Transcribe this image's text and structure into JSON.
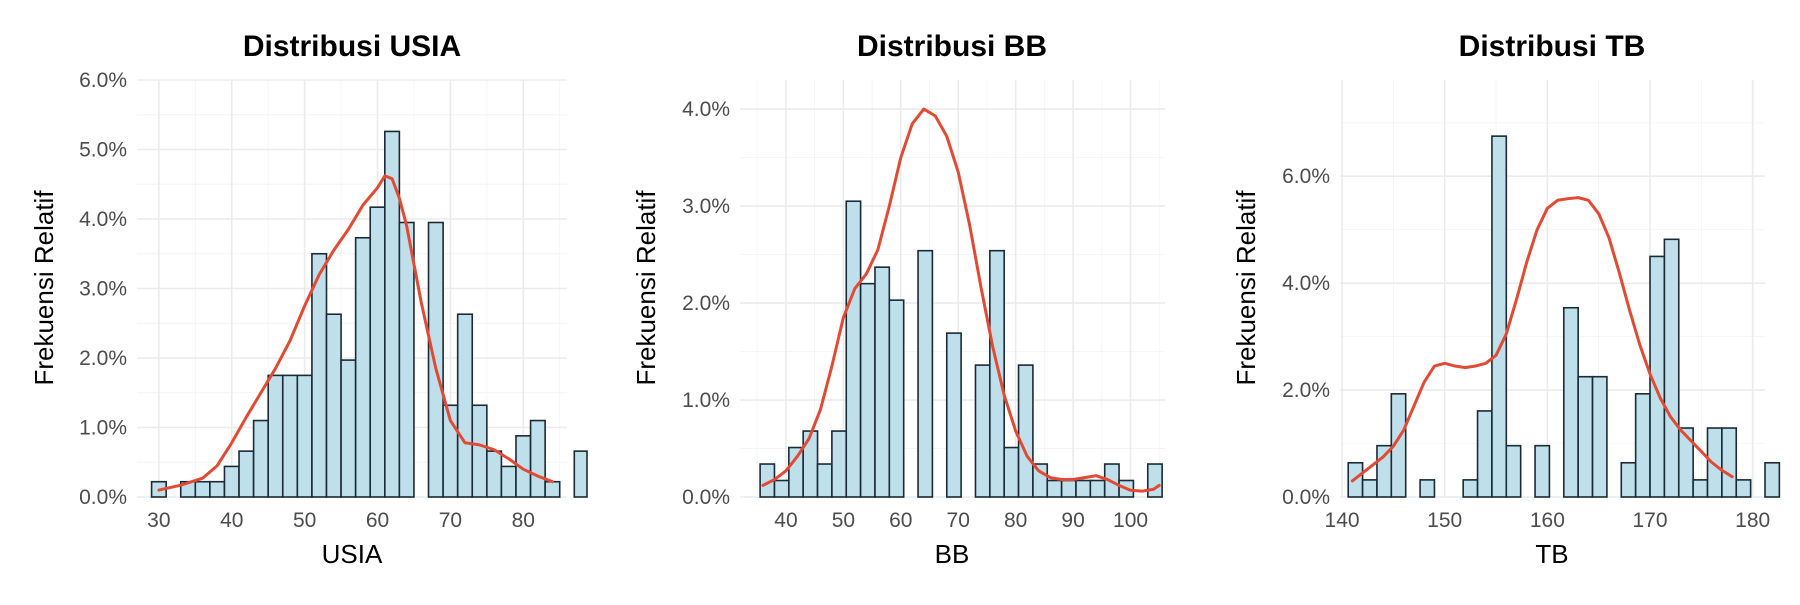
{
  "colors": {
    "bar_fill": "#bfe0eb",
    "bar_stroke": "#1a2a36",
    "density_line": "#e34a33",
    "grid": "#ebebeb"
  },
  "chart_data": [
    {
      "type": "bar",
      "title": "Distribusi USIA",
      "xlabel": "USIA",
      "ylabel": "Frekuensi Relatif",
      "xlim": [
        27,
        86
      ],
      "ylim": [
        0,
        6
      ],
      "x_ticks": [
        "30",
        "40",
        "50",
        "60",
        "70",
        "80"
      ],
      "y_ticks": [
        "0.0%",
        "1.0%",
        "2.0%",
        "3.0%",
        "4.0%",
        "5.0%",
        "6.0%"
      ],
      "y_unit": "percent",
      "grid": true,
      "bins": [
        {
          "from": 29.0,
          "to": 31.0,
          "value": 0.22
        },
        {
          "from": 31.0,
          "to": 33.0,
          "value": 0.0
        },
        {
          "from": 33.0,
          "to": 35.0,
          "value": 0.22
        },
        {
          "from": 35.0,
          "to": 37.0,
          "value": 0.22
        },
        {
          "from": 37.0,
          "to": 39.0,
          "value": 0.22
        },
        {
          "from": 39.0,
          "to": 41.0,
          "value": 0.44
        },
        {
          "from": 41.0,
          "to": 43.0,
          "value": 0.66
        },
        {
          "from": 43.0,
          "to": 45.0,
          "value": 1.1
        },
        {
          "from": 45.0,
          "to": 47.0,
          "value": 1.75
        },
        {
          "from": 47.0,
          "to": 49.0,
          "value": 1.75
        },
        {
          "from": 49.0,
          "to": 51.0,
          "value": 1.75
        },
        {
          "from": 51.0,
          "to": 53.0,
          "value": 3.5
        },
        {
          "from": 53.0,
          "to": 55.0,
          "value": 2.63
        },
        {
          "from": 55.0,
          "to": 57.0,
          "value": 1.97
        },
        {
          "from": 57.0,
          "to": 59.0,
          "value": 3.73
        },
        {
          "from": 59.0,
          "to": 61.0,
          "value": 4.17
        },
        {
          "from": 61.0,
          "to": 63.0,
          "value": 5.26
        },
        {
          "from": 63.0,
          "to": 65.0,
          "value": 3.95
        },
        {
          "from": 65.0,
          "to": 67.0,
          "value": 0.0
        },
        {
          "from": 67.0,
          "to": 69.0,
          "value": 3.95
        },
        {
          "from": 69.0,
          "to": 71.0,
          "value": 1.32
        },
        {
          "from": 71.0,
          "to": 73.0,
          "value": 2.63
        },
        {
          "from": 73.0,
          "to": 75.0,
          "value": 1.32
        },
        {
          "from": 75.0,
          "to": 77.0,
          "value": 0.66
        },
        {
          "from": 77.0,
          "to": 79.0,
          "value": 0.44
        },
        {
          "from": 79.0,
          "to": 81.0,
          "value": 0.88
        },
        {
          "from": 81.0,
          "to": 83.0,
          "value": 1.1
        },
        {
          "from": 83.0,
          "to": 85.0,
          "value": 0.22
        },
        {
          "from": 85.0,
          "to": 87.0,
          "value": 0.0
        },
        {
          "from": 87.0,
          "to": 89.0,
          "value": 0.66
        }
      ],
      "density": {
        "x": [
          30,
          33,
          36,
          38,
          40,
          42,
          44,
          46,
          48,
          50,
          52,
          54,
          56,
          58,
          60,
          61,
          62,
          63,
          64,
          65,
          66,
          68,
          70,
          72,
          74,
          76,
          78,
          80,
          82,
          84
        ],
        "y": [
          0.1,
          0.17,
          0.27,
          0.45,
          0.78,
          1.15,
          1.5,
          1.85,
          2.25,
          2.75,
          3.2,
          3.55,
          3.85,
          4.2,
          4.45,
          4.62,
          4.58,
          4.3,
          3.9,
          3.35,
          2.8,
          1.85,
          1.1,
          0.78,
          0.75,
          0.68,
          0.55,
          0.4,
          0.3,
          0.22
        ]
      }
    },
    {
      "type": "bar",
      "title": "Distribusi BB",
      "xlabel": "BB",
      "ylabel": "Frekuensi Relatif",
      "xlim": [
        32,
        106
      ],
      "ylim": [
        0,
        4.3
      ],
      "x_ticks": [
        "40",
        "50",
        "60",
        "70",
        "80",
        "90",
        "100"
      ],
      "y_ticks": [
        "0.0%",
        "1.0%",
        "2.0%",
        "3.0%",
        "4.0%"
      ],
      "y_unit": "percent",
      "grid": true,
      "bins": [
        {
          "from": 35.5,
          "to": 38.0,
          "value": 0.34
        },
        {
          "from": 38.0,
          "to": 40.5,
          "value": 0.17
        },
        {
          "from": 40.5,
          "to": 43.0,
          "value": 0.51
        },
        {
          "from": 43.0,
          "to": 45.5,
          "value": 0.68
        },
        {
          "from": 45.5,
          "to": 48.0,
          "value": 0.34
        },
        {
          "from": 48.0,
          "to": 50.5,
          "value": 0.68
        },
        {
          "from": 50.5,
          "to": 53.0,
          "value": 3.05
        },
        {
          "from": 53.0,
          "to": 55.5,
          "value": 2.2
        },
        {
          "from": 55.5,
          "to": 58.0,
          "value": 2.37
        },
        {
          "from": 58.0,
          "to": 60.5,
          "value": 2.03
        },
        {
          "from": 60.5,
          "to": 63.0,
          "value": 0.0
        },
        {
          "from": 63.0,
          "to": 65.5,
          "value": 2.54
        },
        {
          "from": 65.5,
          "to": 68.0,
          "value": 0.0
        },
        {
          "from": 68.0,
          "to": 70.5,
          "value": 1.69
        },
        {
          "from": 70.5,
          "to": 73.0,
          "value": 0.0
        },
        {
          "from": 73.0,
          "to": 75.5,
          "value": 1.36
        },
        {
          "from": 75.5,
          "to": 78.0,
          "value": 2.54
        },
        {
          "from": 78.0,
          "to": 80.5,
          "value": 0.51
        },
        {
          "from": 80.5,
          "to": 83.0,
          "value": 1.36
        },
        {
          "from": 83.0,
          "to": 85.5,
          "value": 0.34
        },
        {
          "from": 85.5,
          "to": 88.0,
          "value": 0.17
        },
        {
          "from": 88.0,
          "to": 90.5,
          "value": 0.17
        },
        {
          "from": 90.5,
          "to": 93.0,
          "value": 0.17
        },
        {
          "from": 93.0,
          "to": 95.5,
          "value": 0.17
        },
        {
          "from": 95.5,
          "to": 98.0,
          "value": 0.34
        },
        {
          "from": 98.0,
          "to": 100.5,
          "value": 0.17
        },
        {
          "from": 100.5,
          "to": 103.0,
          "value": 0.0
        },
        {
          "from": 103.0,
          "to": 105.5,
          "value": 0.34
        }
      ],
      "density": {
        "x": [
          36,
          38,
          40,
          42,
          44,
          46,
          48,
          50,
          52,
          54,
          56,
          58,
          60,
          62,
          64,
          66,
          68,
          70,
          72,
          74,
          76,
          78,
          80,
          82,
          84,
          86,
          88,
          90,
          92,
          94,
          96,
          98,
          100,
          102,
          104,
          105
        ],
        "y": [
          0.12,
          0.18,
          0.27,
          0.42,
          0.6,
          0.9,
          1.35,
          1.85,
          2.15,
          2.3,
          2.55,
          3.0,
          3.5,
          3.85,
          4.0,
          3.93,
          3.72,
          3.35,
          2.8,
          2.15,
          1.55,
          1.05,
          0.68,
          0.42,
          0.27,
          0.2,
          0.18,
          0.18,
          0.2,
          0.22,
          0.18,
          0.12,
          0.07,
          0.06,
          0.08,
          0.12
        ]
      }
    },
    {
      "type": "bar",
      "title": "Distribusi TB",
      "xlabel": "TB",
      "ylabel": "Frekuensi Relatif",
      "xlim": [
        139.8,
        181.2
      ],
      "ylim": [
        0,
        7.8
      ],
      "x_ticks": [
        "140",
        "150",
        "160",
        "170",
        "180"
      ],
      "y_ticks": [
        "0.0%",
        "2.0%",
        "4.0%",
        "6.0%"
      ],
      "y_unit": "percent",
      "grid": true,
      "bins": [
        {
          "from": 140.6,
          "to": 142.0,
          "value": 0.64
        },
        {
          "from": 142.0,
          "to": 143.4,
          "value": 0.32
        },
        {
          "from": 143.4,
          "to": 144.8,
          "value": 0.96
        },
        {
          "from": 144.8,
          "to": 146.2,
          "value": 1.93
        },
        {
          "from": 146.2,
          "to": 147.6,
          "value": 0.0
        },
        {
          "from": 147.6,
          "to": 149.0,
          "value": 0.32
        },
        {
          "from": 149.0,
          "to": 150.4,
          "value": 0.0
        },
        {
          "from": 150.4,
          "to": 151.8,
          "value": 0.0
        },
        {
          "from": 151.8,
          "to": 153.2,
          "value": 0.32
        },
        {
          "from": 153.2,
          "to": 154.6,
          "value": 1.61
        },
        {
          "from": 154.6,
          "to": 156.0,
          "value": 6.75
        },
        {
          "from": 156.0,
          "to": 157.4,
          "value": 0.96
        },
        {
          "from": 157.4,
          "to": 158.8,
          "value": 0.0
        },
        {
          "from": 158.8,
          "to": 160.2,
          "value": 0.96
        },
        {
          "from": 160.2,
          "to": 161.6,
          "value": 0.0
        },
        {
          "from": 161.6,
          "to": 163.0,
          "value": 3.54
        },
        {
          "from": 163.0,
          "to": 164.4,
          "value": 2.25
        },
        {
          "from": 164.4,
          "to": 165.8,
          "value": 2.25
        },
        {
          "from": 165.8,
          "to": 167.2,
          "value": 0.0
        },
        {
          "from": 167.2,
          "to": 168.6,
          "value": 0.64
        },
        {
          "from": 168.6,
          "to": 170.0,
          "value": 1.93
        },
        {
          "from": 170.0,
          "to": 171.4,
          "value": 4.5
        },
        {
          "from": 171.4,
          "to": 172.8,
          "value": 4.82
        },
        {
          "from": 172.8,
          "to": 174.2,
          "value": 1.29
        },
        {
          "from": 174.2,
          "to": 175.6,
          "value": 0.32
        },
        {
          "from": 175.6,
          "to": 177.0,
          "value": 1.29
        },
        {
          "from": 177.0,
          "to": 178.4,
          "value": 1.29
        },
        {
          "from": 178.4,
          "to": 179.8,
          "value": 0.32
        },
        {
          "from": 179.8,
          "to": 181.2,
          "value": 0.0
        },
        {
          "from": 181.2,
          "to": 182.6,
          "value": 0.64
        }
      ],
      "density": {
        "x": [
          141,
          142,
          143,
          144,
          145,
          146,
          147,
          148,
          149,
          150,
          151,
          152,
          153,
          154,
          155,
          156,
          157,
          158,
          159,
          160,
          161,
          162,
          163,
          164,
          165,
          166,
          167,
          168,
          169,
          170,
          171,
          172,
          173,
          174,
          175,
          176,
          177,
          178
        ],
        "y": [
          0.3,
          0.45,
          0.6,
          0.75,
          0.95,
          1.25,
          1.7,
          2.15,
          2.45,
          2.5,
          2.45,
          2.42,
          2.45,
          2.5,
          2.65,
          3.05,
          3.7,
          4.4,
          5.0,
          5.4,
          5.55,
          5.58,
          5.6,
          5.55,
          5.3,
          4.85,
          4.2,
          3.5,
          2.85,
          2.3,
          1.85,
          1.5,
          1.25,
          1.05,
          0.85,
          0.65,
          0.5,
          0.38
        ]
      }
    }
  ]
}
